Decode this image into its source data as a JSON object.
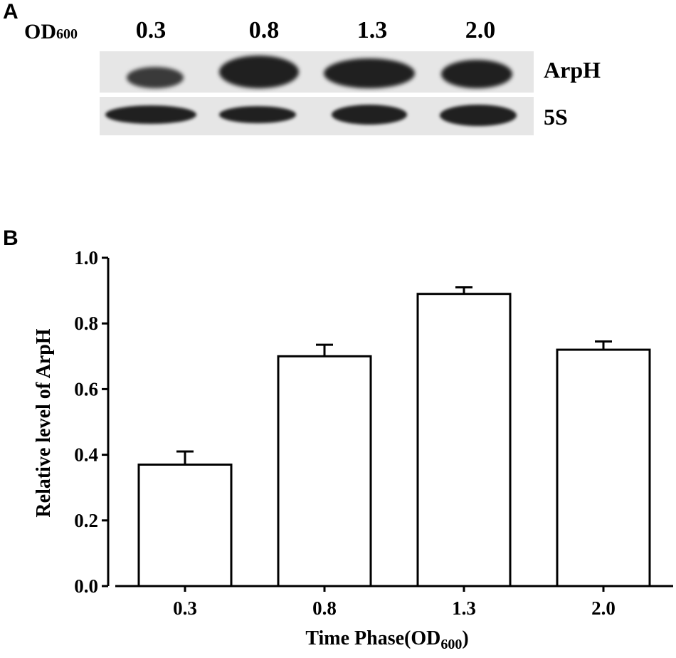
{
  "panel_a": {
    "letter": "A",
    "od_label": "OD",
    "od_sub": "600",
    "lanes": [
      "0.3",
      "0.8",
      "1.3",
      "2.0"
    ],
    "blots": [
      {
        "label": "ArpH"
      },
      {
        "label": "5S"
      }
    ]
  },
  "panel_b": {
    "letter": "B"
  },
  "chart_data": {
    "type": "bar",
    "categories": [
      "0.3",
      "0.8",
      "1.3",
      "2.0"
    ],
    "values": [
      0.37,
      0.7,
      0.89,
      0.72
    ],
    "errors": [
      0.04,
      0.035,
      0.02,
      0.025
    ],
    "ylabel": "Relative level of ArpH",
    "xlabel": "Time Phase(OD",
    "xlabel_sub": "600",
    "xlabel_close": ")",
    "ylim": [
      0,
      1.0
    ],
    "yticks": [
      "0.0",
      "0.2",
      "0.4",
      "0.6",
      "0.8",
      "1.0"
    ],
    "grid": false,
    "bar_fill": "#ffffff",
    "bar_stroke": "#000000"
  }
}
